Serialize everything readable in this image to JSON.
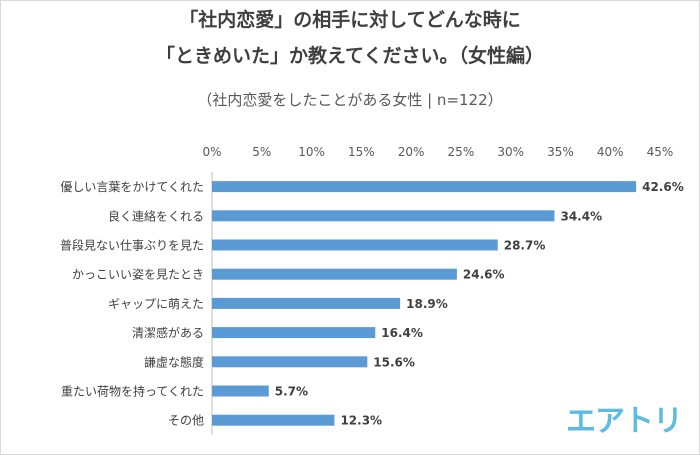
{
  "chart_data": {
    "type": "bar",
    "orientation": "horizontal",
    "title_lines": [
      "「社内恋愛」の相手に対してどんな時に",
      "「ときめいた」か教えてください。（女性編）"
    ],
    "subtitle": "（社内恋愛をしたことがある女性 | n=122）",
    "categories": [
      "優しい言葉をかけてくれた",
      "良く連絡をくれる",
      "普段見ない仕事ぶりを見た",
      "かっこいい姿を見たとき",
      "ギャップに萌えた",
      "清潔感がある",
      "謙虚な態度",
      "重たい荷物を持ってくれた",
      "その他"
    ],
    "values": [
      42.6,
      34.4,
      28.7,
      24.6,
      18.9,
      16.4,
      15.6,
      5.7,
      12.3
    ],
    "value_labels": [
      "42.6%",
      "34.4%",
      "28.7%",
      "24.6%",
      "18.9%",
      "16.4%",
      "15.6%",
      "5.7%",
      "12.3%"
    ],
    "xlim": [
      0,
      45
    ],
    "xticks": [
      0,
      5,
      10,
      15,
      20,
      25,
      30,
      35,
      40,
      45
    ],
    "xtick_labels": [
      "0%",
      "5%",
      "10%",
      "15%",
      "20%",
      "25%",
      "30%",
      "35%",
      "40%",
      "45%"
    ],
    "x_axis_position": "top",
    "grid": false,
    "bar_color": "#5b9bd5"
  },
  "brand": {
    "logo_text": "エアトリ",
    "logo_color": "#5dbbe6"
  }
}
